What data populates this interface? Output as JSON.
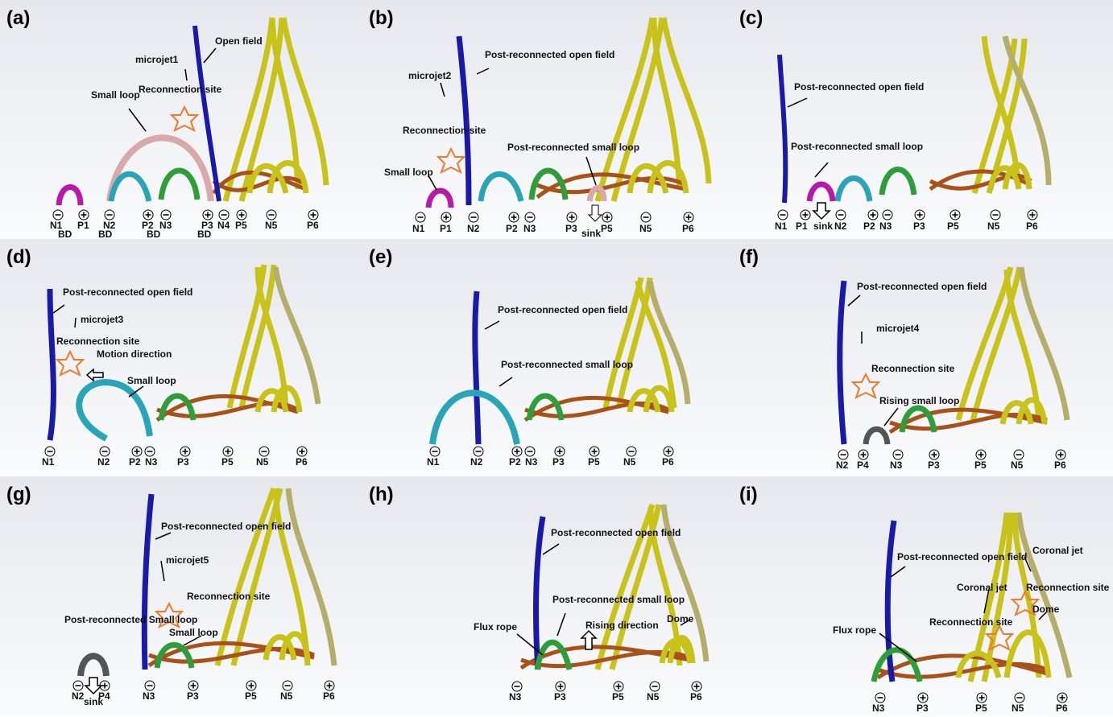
{
  "colors": {
    "open_field": "#1a1aa8",
    "yellow_tube": "#c9c21a",
    "olive_tube": "#b5ad6a",
    "flux_rope": "#a8521a",
    "green_loop": "#2e9e3a",
    "cyan_loop": "#2aa5b8",
    "magenta_loop": "#b51aa8",
    "pink_loop": "#d9a8a8",
    "gray_loop": "#555555",
    "star": "#f07a2a"
  },
  "panels": [
    {
      "label": "(a)",
      "annotations": [
        "Open field",
        "microjet1",
        "Reconnection site",
        "Small loop"
      ],
      "footpoints": [
        "N1",
        "P1",
        "N2",
        "P2",
        "N3",
        "P3",
        "N4",
        "P5",
        "N5",
        "P6"
      ],
      "bd_labels": [
        "BD",
        "BD",
        "BD",
        "BD"
      ]
    },
    {
      "label": "(b)",
      "annotations": [
        "microjet2",
        "Post-reconnected open field",
        "Reconnection site",
        "Post-reconnected small loop",
        "Small loop",
        "sink"
      ],
      "footpoints": [
        "N1",
        "P1",
        "N2",
        "P2",
        "N3",
        "P3",
        "P5",
        "N5",
        "P6"
      ]
    },
    {
      "label": "(c)",
      "annotations": [
        "Post-reconnected open field",
        "Post-reconnected small loop",
        "sink"
      ],
      "footpoints": [
        "N1",
        "P1",
        "N2",
        "P2",
        "N3",
        "P3",
        "P5",
        "N5",
        "P6"
      ]
    },
    {
      "label": "(d)",
      "annotations": [
        "Post-reconnected open field",
        "microjet3",
        "Reconnection site",
        "Motion direction",
        "Small loop"
      ],
      "footpoints": [
        "N1",
        "N2",
        "P2",
        "N3",
        "P3",
        "P5",
        "N5",
        "P6"
      ]
    },
    {
      "label": "(e)",
      "annotations": [
        "Post-reconnected open field",
        "Post-reconnected small loop"
      ],
      "footpoints": [
        "N1",
        "N2",
        "P2",
        "N3",
        "P3",
        "P5",
        "N5",
        "P6"
      ]
    },
    {
      "label": "(f)",
      "annotations": [
        "Post-reconnected open field",
        "microjet4",
        "Reconnection site",
        "Rising small loop"
      ],
      "footpoints": [
        "N2",
        "P4",
        "N3",
        "P3",
        "P5",
        "N5",
        "P6"
      ]
    },
    {
      "label": "(g)",
      "annotations": [
        "Post-reconnected open field",
        "microjet5",
        "Reconnection site",
        "Post-reconnected Small loop",
        "Small loop",
        "sink"
      ],
      "footpoints": [
        "N2",
        "P4",
        "N3",
        "P3",
        "P5",
        "N5",
        "P6"
      ]
    },
    {
      "label": "(h)",
      "annotations": [
        "Post-reconnected open field",
        "Post-reconnected small loop",
        "Flux rope",
        "Rising direction",
        "Dome"
      ],
      "footpoints": [
        "N3",
        "P3",
        "P5",
        "N5",
        "P6"
      ]
    },
    {
      "label": "(i)",
      "annotations": [
        "Post-reconnected open field",
        "Coronal jet",
        "Coronal jet",
        "Reconnection site",
        "Reconnection site",
        "Dome",
        "Flux rope"
      ],
      "footpoints": [
        "N3",
        "P3",
        "P5",
        "N5",
        "P6"
      ]
    }
  ]
}
